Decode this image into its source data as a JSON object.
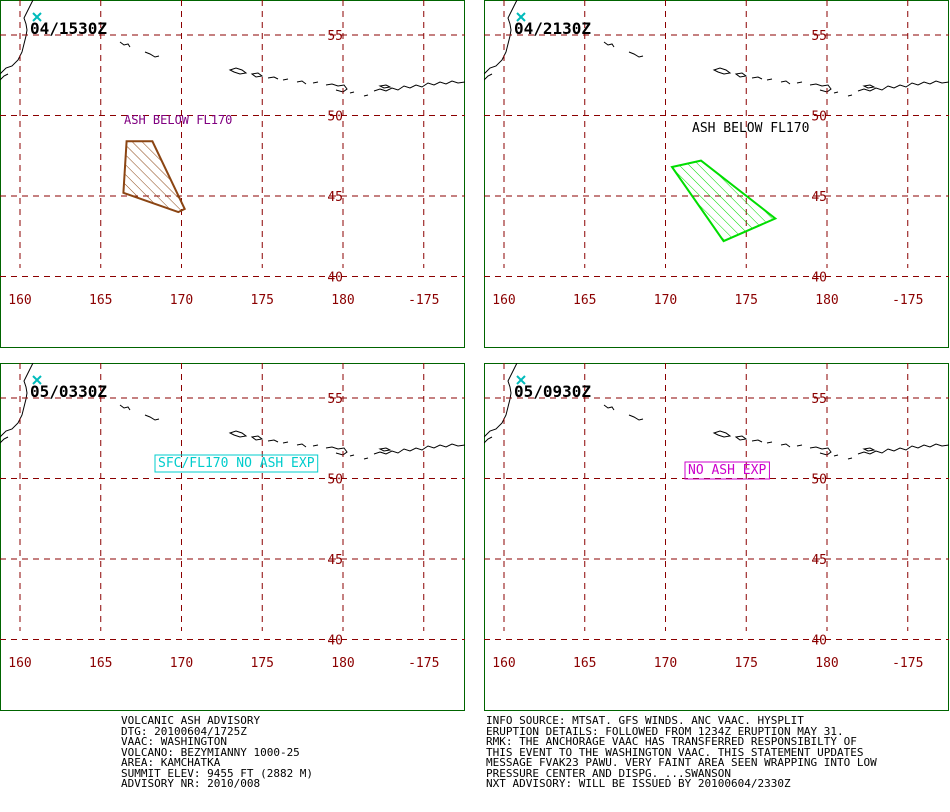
{
  "panels": [
    {
      "time": "04/1530Z",
      "label": "ASH BELOW FL170",
      "label_color": "#800080",
      "label_box": false,
      "polygon": [
        [
          166.6,
          48.4
        ],
        [
          168.2,
          48.4
        ],
        [
          170.2,
          44.2
        ],
        [
          169.8,
          44.0
        ],
        [
          166.4,
          45.2
        ]
      ],
      "polygon_color": "#8b4513"
    },
    {
      "time": "04/2130Z",
      "label": "ASH BELOW FL170",
      "label_color": "#000000",
      "label_box": false,
      "polygon": [
        [
          170.4,
          46.8
        ],
        [
          172.2,
          47.2
        ],
        [
          176.8,
          43.6
        ],
        [
          173.6,
          42.2
        ]
      ],
      "polygon_color": "#00dd00"
    },
    {
      "time": "05/0330Z",
      "label": "SFC/FL170 NO ASH EXP",
      "label_color": "#00cccc",
      "label_box": true,
      "polygon": [],
      "polygon_color": ""
    },
    {
      "time": "05/0930Z",
      "label": "NO ASH EXP",
      "label_color": "#cc00cc",
      "label_box": true,
      "polygon": [],
      "polygon_color": ""
    }
  ],
  "map": {
    "lon_ticks": [
      "160",
      "165",
      "170",
      "175",
      "180",
      "-175"
    ],
    "lat_ticks": [
      "55",
      "50",
      "45",
      "40"
    ],
    "grid_color": "#8b0000",
    "border_color": "#006400",
    "volcano_marker_color": "#00bbbb"
  },
  "advisory_left": [
    "VOLCANIC ASH ADVISORY",
    "DTG: 20100604/1725Z",
    "VAAC: WASHINGTON",
    "VOLCANO: BEZYMIANNY 1000-25",
    "AREA: KAMCHATKA",
    "SUMMIT ELEV: 9455 FT (2882 M)",
    "ADVISORY NR: 2010/008"
  ],
  "advisory_right": [
    "INFO SOURCE: MTSAT. GFS WINDS. ANC VAAC. HYSPLIT",
    "ERUPTION DETAILS: FOLLOWED FROM 1234Z ERUPTION MAY 31.",
    "RMK: THE ANCHORAGE VAAC HAS TRANSFERRED RESPONSIBILTY OF",
    "THIS EVENT TO THE WASHINGTON VAAC. THIS STATEMENT UPDATES",
    "MESSAGE FVAK23 PAWU. VERY FAINT AREA SEEN WRAPPING INTO LOW",
    "PRESSURE CENTER AND DISPG. ...SWANSON",
    "NXT ADVISORY: WILL BE ISSUED BY 20100604/2330Z"
  ]
}
